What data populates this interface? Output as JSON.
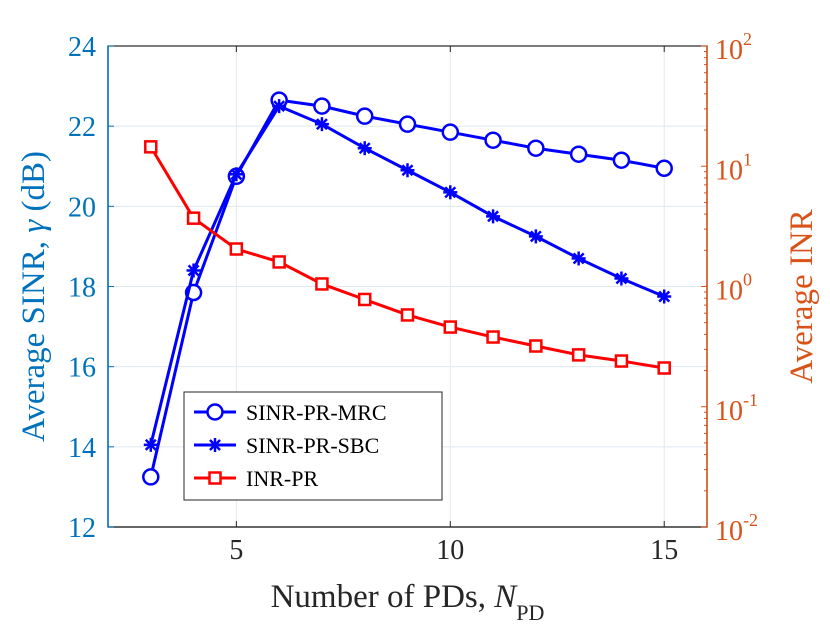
{
  "chart_data": {
    "type": "line",
    "x": [
      3,
      4,
      5,
      6,
      7,
      8,
      9,
      10,
      11,
      12,
      13,
      14,
      15
    ],
    "xlim": [
      2,
      16
    ],
    "xticks": [
      5,
      10,
      15
    ],
    "xlabel": "Number of PDs, ",
    "xlabel_math": "N",
    "xlabel_sub": "PD",
    "left_axis": {
      "label": "Average SINR, ",
      "label_symbol": "γ",
      "label_unit": " (dB)",
      "ylim": [
        12,
        24
      ],
      "ticks": [
        12,
        14,
        16,
        18,
        20,
        22,
        24
      ],
      "color": "#0072bd"
    },
    "right_axis": {
      "label": "Average INR",
      "scale": "log",
      "ylim": [
        0.01,
        100
      ],
      "ticks": [
        {
          "value": 0.01,
          "base": "10",
          "exp": "-2"
        },
        {
          "value": 0.1,
          "base": "10",
          "exp": "-1"
        },
        {
          "value": 1,
          "base": "10",
          "exp": "0"
        },
        {
          "value": 10,
          "base": "10",
          "exp": "1"
        },
        {
          "value": 100,
          "base": "10",
          "exp": "2"
        }
      ],
      "color": "#d95319"
    },
    "series": [
      {
        "name": "SINR-PR-MRC",
        "axis": "left",
        "color": "#0000ff",
        "marker": "circle",
        "values": [
          13.25,
          17.85,
          20.75,
          22.65,
          22.5,
          22.25,
          22.05,
          21.85,
          21.65,
          21.45,
          21.3,
          21.15,
          20.95
        ]
      },
      {
        "name": "SINR-PR-SBC",
        "axis": "left",
        "color": "#0000ff",
        "marker": "star",
        "values": [
          14.05,
          18.4,
          20.8,
          22.5,
          22.05,
          21.45,
          20.9,
          20.35,
          19.75,
          19.25,
          18.7,
          18.2,
          17.75
        ]
      },
      {
        "name": "INR-PR",
        "axis": "right",
        "color": "#ff0000",
        "marker": "square",
        "values": [
          14.5,
          3.7,
          2.05,
          1.6,
          1.05,
          0.78,
          0.58,
          0.46,
          0.38,
          0.32,
          0.27,
          0.24,
          0.21
        ]
      }
    ],
    "grid": true,
    "legend": {
      "position": "lower-left",
      "entries": [
        "SINR-PR-MRC",
        "SINR-PR-SBC",
        "INR-PR"
      ]
    }
  }
}
